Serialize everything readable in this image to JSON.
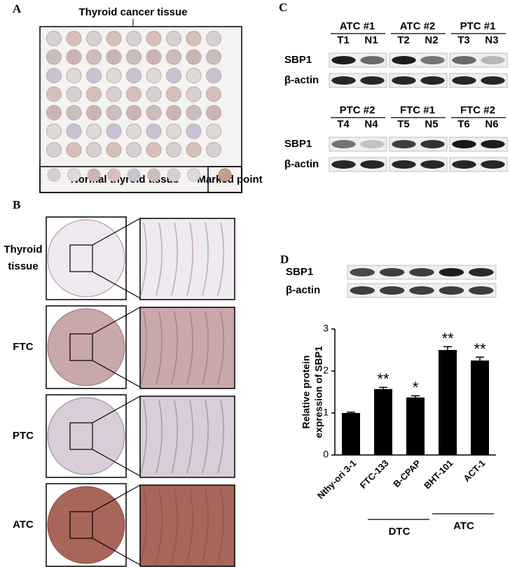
{
  "panel_labels": [
    "A",
    "B",
    "C",
    "D"
  ],
  "panel_a": {
    "title": "Thyroid cancer tissue",
    "normal_label": "Normal thyroid  tissue",
    "marked_label": "Marked point"
  },
  "panel_b": {
    "rows": [
      {
        "lines": [
          "Thyroid",
          "tissue"
        ]
      },
      {
        "lines": [
          "FTC"
        ]
      },
      {
        "lines": [
          "PTC"
        ]
      },
      {
        "lines": [
          "ATC"
        ]
      }
    ]
  },
  "panel_c": {
    "row_labels": [
      "SBP1",
      "β-actin"
    ],
    "groups": [
      {
        "name": "ATC #1",
        "lanes": [
          "T1",
          "N1"
        ]
      },
      {
        "name": "ATC #2",
        "lanes": [
          "T2",
          "N2"
        ]
      },
      {
        "name": "PTC #1",
        "lanes": [
          "T3",
          "N3"
        ]
      },
      {
        "name": "PTC #2",
        "lanes": [
          "T4",
          "N4"
        ]
      },
      {
        "name": "FTC #1",
        "lanes": [
          "T5",
          "N5"
        ]
      },
      {
        "name": "FTC #2",
        "lanes": [
          "T6",
          "N6"
        ]
      }
    ]
  },
  "chart_data": {
    "type": "bar",
    "blot_labels": [
      "SBP1",
      "β-actin"
    ],
    "y_label": [
      "Relative protein",
      "expression of SBP1"
    ],
    "categories": [
      "Nthy-ori 3-1",
      "FTC-133",
      "B-CPAP",
      "BHT-101",
      "ACT-1"
    ],
    "values": [
      1.0,
      1.57,
      1.37,
      2.5,
      2.25
    ],
    "errors": [
      0.02,
      0.04,
      0.04,
      0.08,
      0.08
    ],
    "significance": [
      null,
      "**",
      "*",
      "**",
      "**"
    ],
    "groups": [
      "DTC",
      "ATC"
    ],
    "color": "#000000",
    "ylim": [
      0,
      3
    ],
    "yticks": [
      0,
      1,
      2,
      3
    ]
  }
}
